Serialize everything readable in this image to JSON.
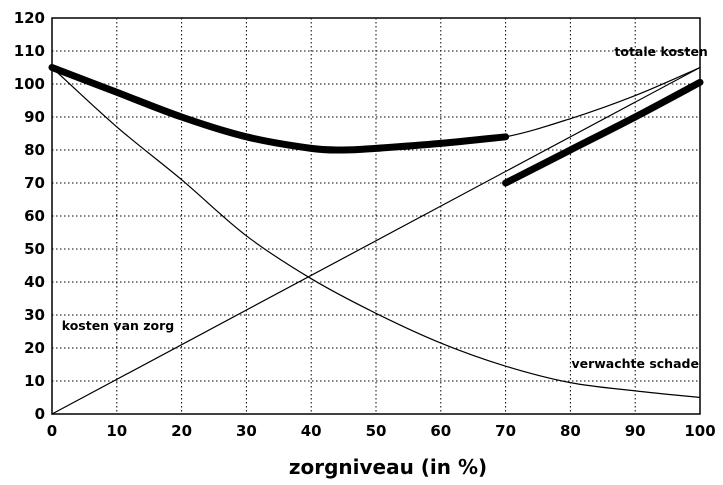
{
  "chart_data": {
    "type": "line",
    "xlabel": "zorgniveau (in %)",
    "ylabel": "",
    "xlim": [
      0,
      100
    ],
    "ylim": [
      0,
      120
    ],
    "xticks": [
      0,
      10,
      20,
      30,
      40,
      50,
      60,
      70,
      80,
      90,
      100
    ],
    "yticks": [
      0,
      10,
      20,
      30,
      40,
      50,
      60,
      70,
      80,
      90,
      100,
      110,
      120
    ],
    "grid": true,
    "colors": {
      "line": "#000000",
      "grid": "#000000",
      "background": "#ffffff"
    },
    "series": [
      {
        "name": "totale kosten",
        "style": "thin",
        "x": [
          0,
          10,
          20,
          30,
          40,
          45,
          50,
          60,
          70,
          80,
          90,
          100
        ],
        "y": [
          105,
          97.5,
          90,
          84,
          80.5,
          80,
          80.5,
          82,
          84,
          89.5,
          96.5,
          105
        ]
      },
      {
        "name": "kosten van zorg",
        "style": "thin",
        "x": [
          0,
          100
        ],
        "y": [
          0,
          105
        ]
      },
      {
        "name": "verwachte schade",
        "style": "thin",
        "x": [
          0,
          10,
          20,
          30,
          40,
          50,
          60,
          70,
          80,
          90,
          100
        ],
        "y": [
          105,
          87,
          71,
          54,
          41,
          30.5,
          21.5,
          14.5,
          9.5,
          7,
          5
        ]
      },
      {
        "style": "thick",
        "x": [
          0,
          10,
          20,
          30,
          40,
          45,
          50,
          60,
          70
        ],
        "y": [
          105,
          97.5,
          90,
          84,
          80.5,
          80,
          80.5,
          82,
          84
        ]
      },
      {
        "style": "thick",
        "x": [
          70,
          80,
          90,
          100
        ],
        "y": [
          70,
          80,
          90,
          100.5
        ]
      }
    ],
    "annotations": [
      {
        "text": "totale kosten",
        "x": 94,
        "y": 108.5
      },
      {
        "text": "kosten van zorg",
        "x": 1.5,
        "y": 25.5
      },
      {
        "text": "verwachte schade",
        "x": 90,
        "y": 14
      }
    ]
  }
}
